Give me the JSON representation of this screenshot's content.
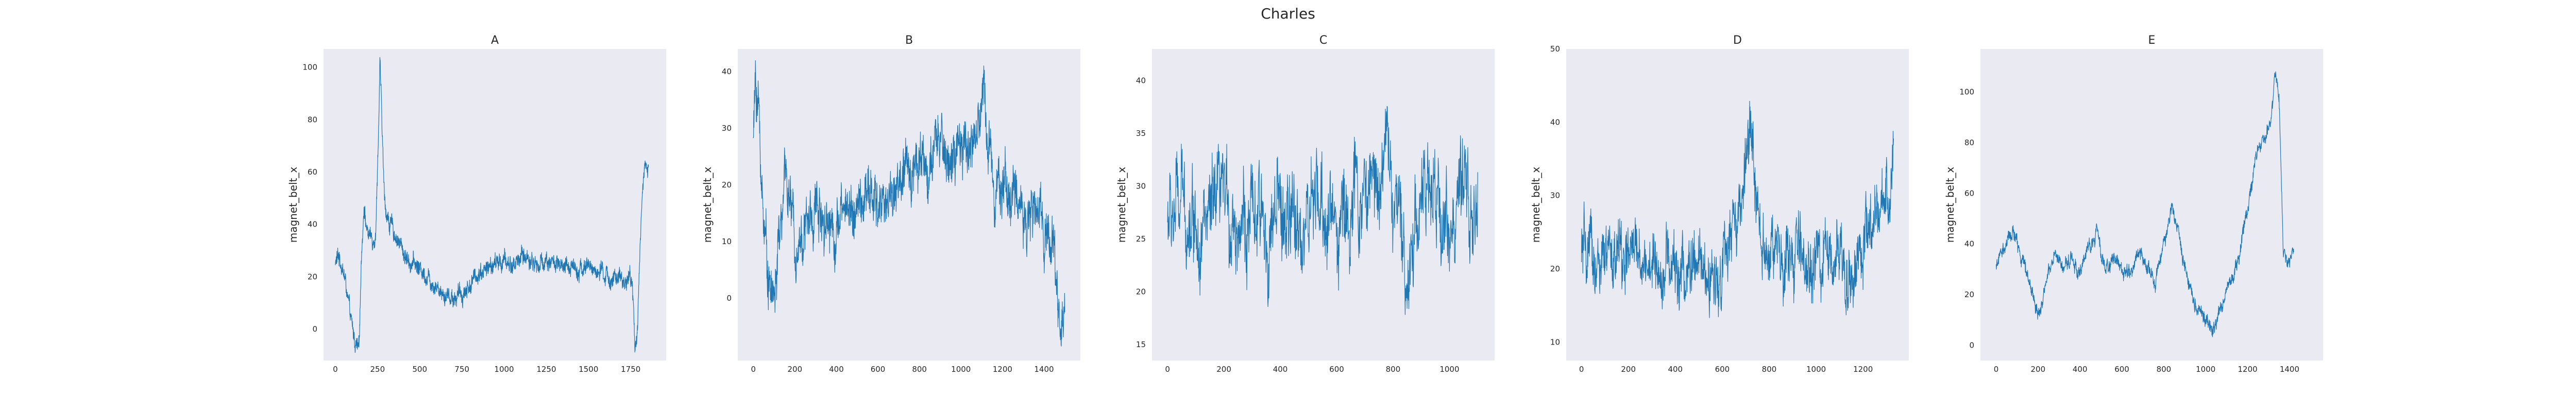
{
  "figure": {
    "title": "Charles"
  },
  "colors": {
    "series": "#1f77b4",
    "plot_background": "#eaeaf2",
    "text": "#262626"
  },
  "chart_data": [
    {
      "type": "line",
      "title": "A",
      "xlabel": "",
      "ylabel": "magnet_belt_x",
      "xlim": [
        -70,
        1960
      ],
      "ylim": [
        -12,
        107
      ],
      "xticks": [
        0,
        250,
        500,
        750,
        1000,
        1250,
        1500,
        1750
      ],
      "yticks": [
        0,
        20,
        40,
        60,
        80,
        100
      ],
      "grid": false,
      "n_points": 1870,
      "anchors": [
        [
          0,
          25
        ],
        [
          20,
          28
        ],
        [
          40,
          24
        ],
        [
          60,
          18
        ],
        [
          80,
          8
        ],
        [
          100,
          0
        ],
        [
          120,
          -6
        ],
        [
          140,
          -9
        ],
        [
          155,
          30
        ],
        [
          170,
          48
        ],
        [
          185,
          38
        ],
        [
          200,
          36
        ],
        [
          220,
          34
        ],
        [
          240,
          38
        ],
        [
          255,
          75
        ],
        [
          265,
          102
        ],
        [
          275,
          80
        ],
        [
          290,
          50
        ],
        [
          310,
          42
        ],
        [
          340,
          38
        ],
        [
          380,
          33
        ],
        [
          420,
          27
        ],
        [
          470,
          25
        ],
        [
          520,
          22
        ],
        [
          580,
          18
        ],
        [
          640,
          14
        ],
        [
          700,
          12
        ],
        [
          760,
          14
        ],
        [
          800,
          17
        ],
        [
          850,
          22
        ],
        [
          900,
          23
        ],
        [
          950,
          25
        ],
        [
          1000,
          26
        ],
        [
          1050,
          24
        ],
        [
          1100,
          28
        ],
        [
          1150,
          27
        ],
        [
          1200,
          24
        ],
        [
          1250,
          27
        ],
        [
          1300,
          25
        ],
        [
          1350,
          22
        ],
        [
          1400,
          25
        ],
        [
          1450,
          23
        ],
        [
          1500,
          24
        ],
        [
          1550,
          22
        ],
        [
          1600,
          20
        ],
        [
          1650,
          19
        ],
        [
          1700,
          18
        ],
        [
          1740,
          20
        ],
        [
          1760,
          18
        ],
        [
          1775,
          -9
        ],
        [
          1790,
          2
        ],
        [
          1810,
          40
        ],
        [
          1830,
          60
        ],
        [
          1855,
          63
        ]
      ]
    },
    {
      "type": "line",
      "title": "B",
      "xlabel": "",
      "ylabel": "magnet_belt_x",
      "xlim": [
        -75,
        1575
      ],
      "ylim": [
        -11,
        44
      ],
      "xticks": [
        0,
        200,
        400,
        600,
        800,
        1000,
        1200,
        1400
      ],
      "yticks": [
        0,
        10,
        20,
        30,
        40
      ],
      "grid": false,
      "n_points": 1500,
      "anchors": [
        [
          0,
          28
        ],
        [
          10,
          38
        ],
        [
          25,
          34
        ],
        [
          40,
          20
        ],
        [
          60,
          10
        ],
        [
          80,
          2
        ],
        [
          100,
          0
        ],
        [
          130,
          12
        ],
        [
          160,
          22
        ],
        [
          200,
          10
        ],
        [
          250,
          12
        ],
        [
          300,
          16
        ],
        [
          350,
          15
        ],
        [
          400,
          12
        ],
        [
          450,
          17
        ],
        [
          500,
          15
        ],
        [
          550,
          18
        ],
        [
          600,
          16
        ],
        [
          650,
          18
        ],
        [
          700,
          20
        ],
        [
          750,
          22
        ],
        [
          800,
          26
        ],
        [
          850,
          22
        ],
        [
          900,
          28
        ],
        [
          950,
          24
        ],
        [
          1000,
          25
        ],
        [
          1050,
          28
        ],
        [
          1090,
          30
        ],
        [
          1110,
          38
        ],
        [
          1130,
          28
        ],
        [
          1160,
          22
        ],
        [
          1200,
          20
        ],
        [
          1250,
          18
        ],
        [
          1300,
          16
        ],
        [
          1350,
          14
        ],
        [
          1400,
          14
        ],
        [
          1440,
          10
        ],
        [
          1460,
          3
        ],
        [
          1480,
          -6
        ],
        [
          1500,
          0
        ]
      ]
    },
    {
      "type": "line",
      "title": "C",
      "xlabel": "",
      "ylabel": "magnet_belt_x",
      "xlim": [
        -55,
        1160
      ],
      "ylim": [
        13.5,
        43
      ],
      "xticks": [
        0,
        200,
        400,
        600,
        800,
        1000
      ],
      "yticks": [
        15,
        20,
        25,
        30,
        35,
        40
      ],
      "grid": false,
      "n_points": 1100,
      "anchors": [
        [
          0,
          27
        ],
        [
          50,
          28
        ],
        [
          100,
          27.5
        ],
        [
          150,
          26
        ],
        [
          200,
          28
        ],
        [
          250,
          27
        ],
        [
          300,
          26
        ],
        [
          350,
          26
        ],
        [
          400,
          27
        ],
        [
          450,
          26
        ],
        [
          500,
          27
        ],
        [
          550,
          27.5
        ],
        [
          600,
          27
        ],
        [
          650,
          28
        ],
        [
          700,
          29
        ],
        [
          750,
          31
        ],
        [
          770,
          36
        ],
        [
          800,
          29
        ],
        [
          830,
          24
        ],
        [
          850,
          22
        ],
        [
          880,
          27
        ],
        [
          900,
          30
        ],
        [
          950,
          28
        ],
        [
          1000,
          27
        ],
        [
          1050,
          28
        ],
        [
          1100,
          27
        ]
      ]
    },
    {
      "type": "line",
      "title": "D",
      "xlabel": "",
      "ylabel": "magnet_belt_x",
      "xlim": [
        -65,
        1395
      ],
      "ylim": [
        7.5,
        50
      ],
      "xticks": [
        0,
        200,
        400,
        600,
        800,
        1000,
        1200
      ],
      "yticks": [
        10,
        20,
        30,
        40,
        50
      ],
      "grid": false,
      "n_points": 1330,
      "anchors": [
        [
          0,
          22
        ],
        [
          50,
          21
        ],
        [
          100,
          20
        ],
        [
          150,
          22
        ],
        [
          200,
          21
        ],
        [
          250,
          22
        ],
        [
          300,
          20
        ],
        [
          350,
          21
        ],
        [
          400,
          20
        ],
        [
          450,
          19
        ],
        [
          500,
          20
        ],
        [
          550,
          18
        ],
        [
          600,
          21
        ],
        [
          650,
          24
        ],
        [
          700,
          32
        ],
        [
          720,
          40
        ],
        [
          740,
          30
        ],
        [
          780,
          24
        ],
        [
          820,
          22
        ],
        [
          860,
          20
        ],
        [
          900,
          21
        ],
        [
          950,
          22
        ],
        [
          1000,
          20
        ],
        [
          1050,
          21
        ],
        [
          1100,
          22
        ],
        [
          1150,
          20
        ],
        [
          1200,
          22
        ],
        [
          1250,
          25
        ],
        [
          1300,
          30
        ],
        [
          1330,
          34
        ]
      ]
    },
    {
      "type": "line",
      "title": "E",
      "xlabel": "",
      "ylabel": "magnet_belt_x",
      "xlim": [
        -75,
        1560
      ],
      "ylim": [
        -6,
        117
      ],
      "xticks": [
        0,
        200,
        400,
        600,
        800,
        1000,
        1200,
        1400
      ],
      "yticks": [
        0,
        20,
        40,
        60,
        80,
        100
      ],
      "grid": false,
      "n_points": 1420,
      "anchors": [
        [
          0,
          32
        ],
        [
          40,
          38
        ],
        [
          80,
          45
        ],
        [
          120,
          35
        ],
        [
          160,
          25
        ],
        [
          200,
          12
        ],
        [
          240,
          25
        ],
        [
          280,
          35
        ],
        [
          320,
          30
        ],
        [
          360,
          35
        ],
        [
          400,
          28
        ],
        [
          440,
          38
        ],
        [
          480,
          45
        ],
        [
          520,
          30
        ],
        [
          560,
          35
        ],
        [
          600,
          30
        ],
        [
          640,
          28
        ],
        [
          680,
          38
        ],
        [
          720,
          30
        ],
        [
          760,
          25
        ],
        [
          800,
          40
        ],
        [
          840,
          55
        ],
        [
          880,
          40
        ],
        [
          920,
          25
        ],
        [
          960,
          15
        ],
        [
          1000,
          10
        ],
        [
          1040,
          5
        ],
        [
          1080,
          18
        ],
        [
          1120,
          25
        ],
        [
          1160,
          35
        ],
        [
          1200,
          55
        ],
        [
          1240,
          75
        ],
        [
          1280,
          80
        ],
        [
          1310,
          90
        ],
        [
          1330,
          110
        ],
        [
          1350,
          100
        ],
        [
          1370,
          40
        ],
        [
          1390,
          30
        ],
        [
          1420,
          38
        ]
      ]
    }
  ]
}
